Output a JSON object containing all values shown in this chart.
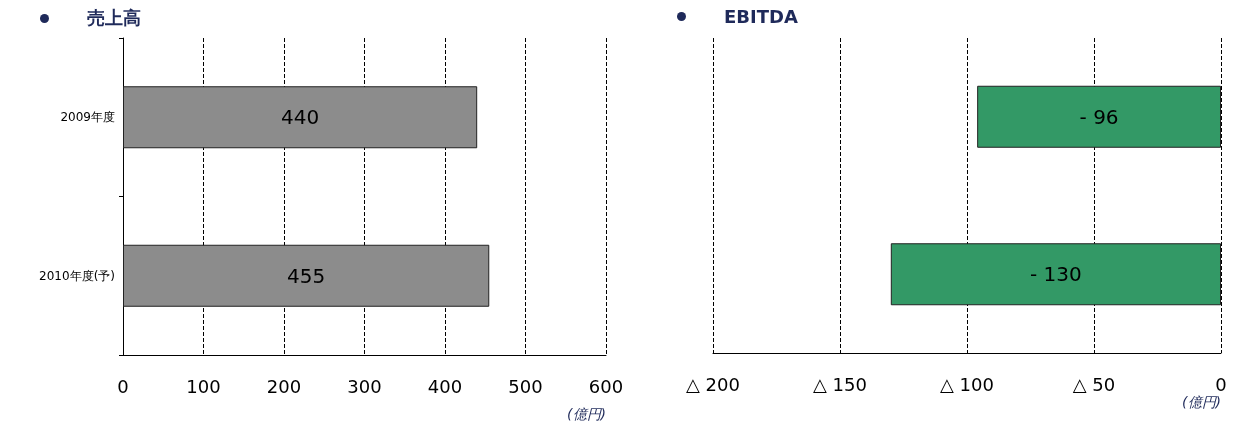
{
  "chart_data": [
    {
      "type": "bar",
      "orientation": "horizontal",
      "title": "売上高",
      "xlabel": "(億円)",
      "categories": [
        "2009年度",
        "2010年度(予)"
      ],
      "values": [
        440,
        455
      ],
      "color": "#8c8c8c",
      "data_labels": true,
      "xlim": [
        0,
        600
      ],
      "xticks": [
        0,
        100,
        200,
        300,
        400,
        500,
        600
      ],
      "grid": "x"
    },
    {
      "type": "bar",
      "orientation": "horizontal",
      "title": "EBITDA",
      "xlabel": "(億円)",
      "categories": [
        null,
        null
      ],
      "values": [
        -96,
        -130
      ],
      "value_labels": [
        "- 96",
        "- 130"
      ],
      "color": "#339966",
      "xlim": [
        -200,
        0
      ],
      "xticks": [
        {
          "value": -200,
          "label": "△ 200"
        },
        {
          "value": -150,
          "label": "△ 150"
        },
        {
          "value": -100,
          "label": "△ 100"
        },
        {
          "value": -50,
          "label": "△ 50"
        },
        0
      ],
      "grid": "x"
    }
  ]
}
